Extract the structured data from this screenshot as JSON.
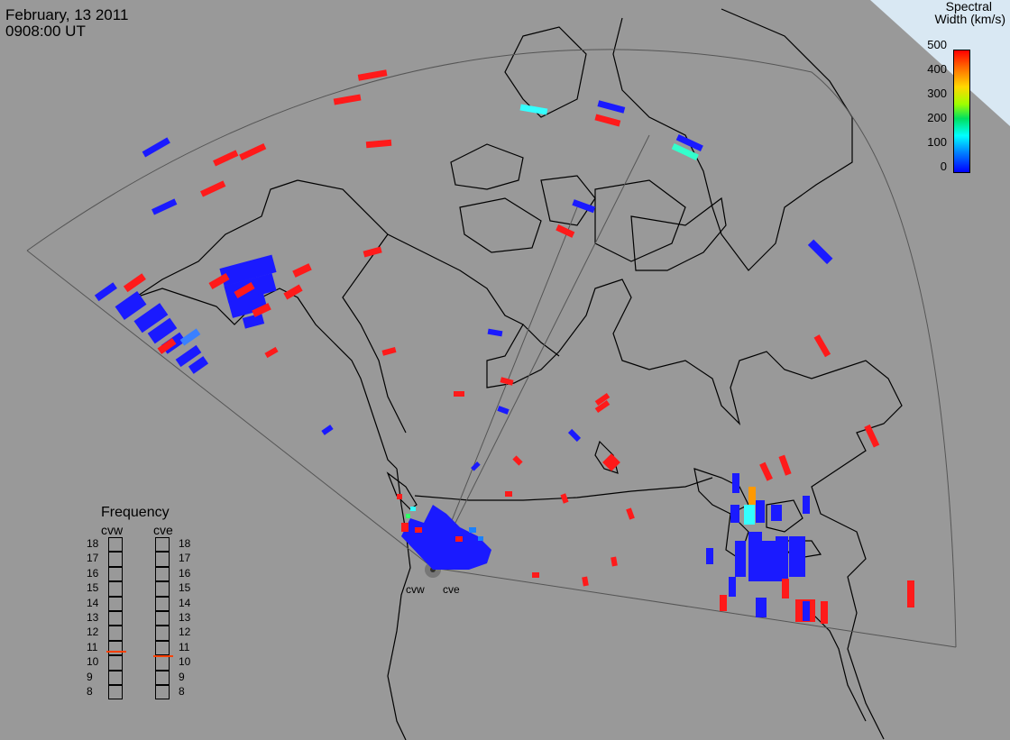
{
  "header": {
    "date": "February, 13 2011",
    "time": "0908:00 UT"
  },
  "colorbar": {
    "title_line1": "Spectral",
    "title_line2": "Width (km/s)",
    "ticks": [
      "500",
      "400",
      "300",
      "200",
      "100",
      "0"
    ],
    "colors": [
      "#0000ff",
      "#0080ff",
      "#00ffff",
      "#00e060",
      "#a0ff00",
      "#ffd800",
      "#ff6a00",
      "#ff0000"
    ]
  },
  "radars": {
    "west": "cvw",
    "east": "cve"
  },
  "frequency": {
    "title": "Frequency",
    "scale": [
      "18",
      "17",
      "16",
      "15",
      "14",
      "13",
      "12",
      "11",
      "10",
      "9",
      "8"
    ],
    "cvw_value": 10.8,
    "cve_value": 10.5,
    "marker_color": "#ff4000"
  },
  "map_colors": {
    "background": "#999999",
    "coast": "#000000",
    "fov": "#555555"
  }
}
